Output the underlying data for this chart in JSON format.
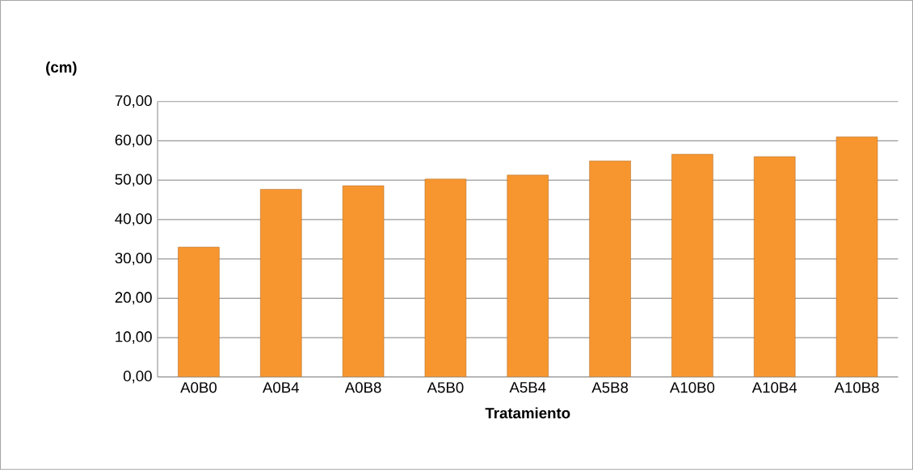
{
  "chart_data": {
    "type": "bar",
    "ylabel": "(cm)",
    "xlabel": "Tratamiento",
    "categories": [
      "A0B0",
      "A0B4",
      "A0B8",
      "A5B0",
      "A5B4",
      "A5B8",
      "A10B0",
      "A10B4",
      "A10B8"
    ],
    "values": [
      33.0,
      47.7,
      48.6,
      50.3,
      51.3,
      54.9,
      56.6,
      56.0,
      61.0
    ],
    "color": "#f7962f",
    "ylim": [
      0,
      70
    ],
    "yticks": [
      {
        "value": 0,
        "label": "0,00"
      },
      {
        "value": 10,
        "label": "10,00"
      },
      {
        "value": 20,
        "label": "20,00"
      },
      {
        "value": 30,
        "label": "30,00"
      },
      {
        "value": 40,
        "label": "40,00"
      },
      {
        "value": 50,
        "label": "50,00"
      },
      {
        "value": 60,
        "label": "60,00"
      },
      {
        "value": 70,
        "label": "70,00"
      }
    ],
    "grid": "y"
  }
}
